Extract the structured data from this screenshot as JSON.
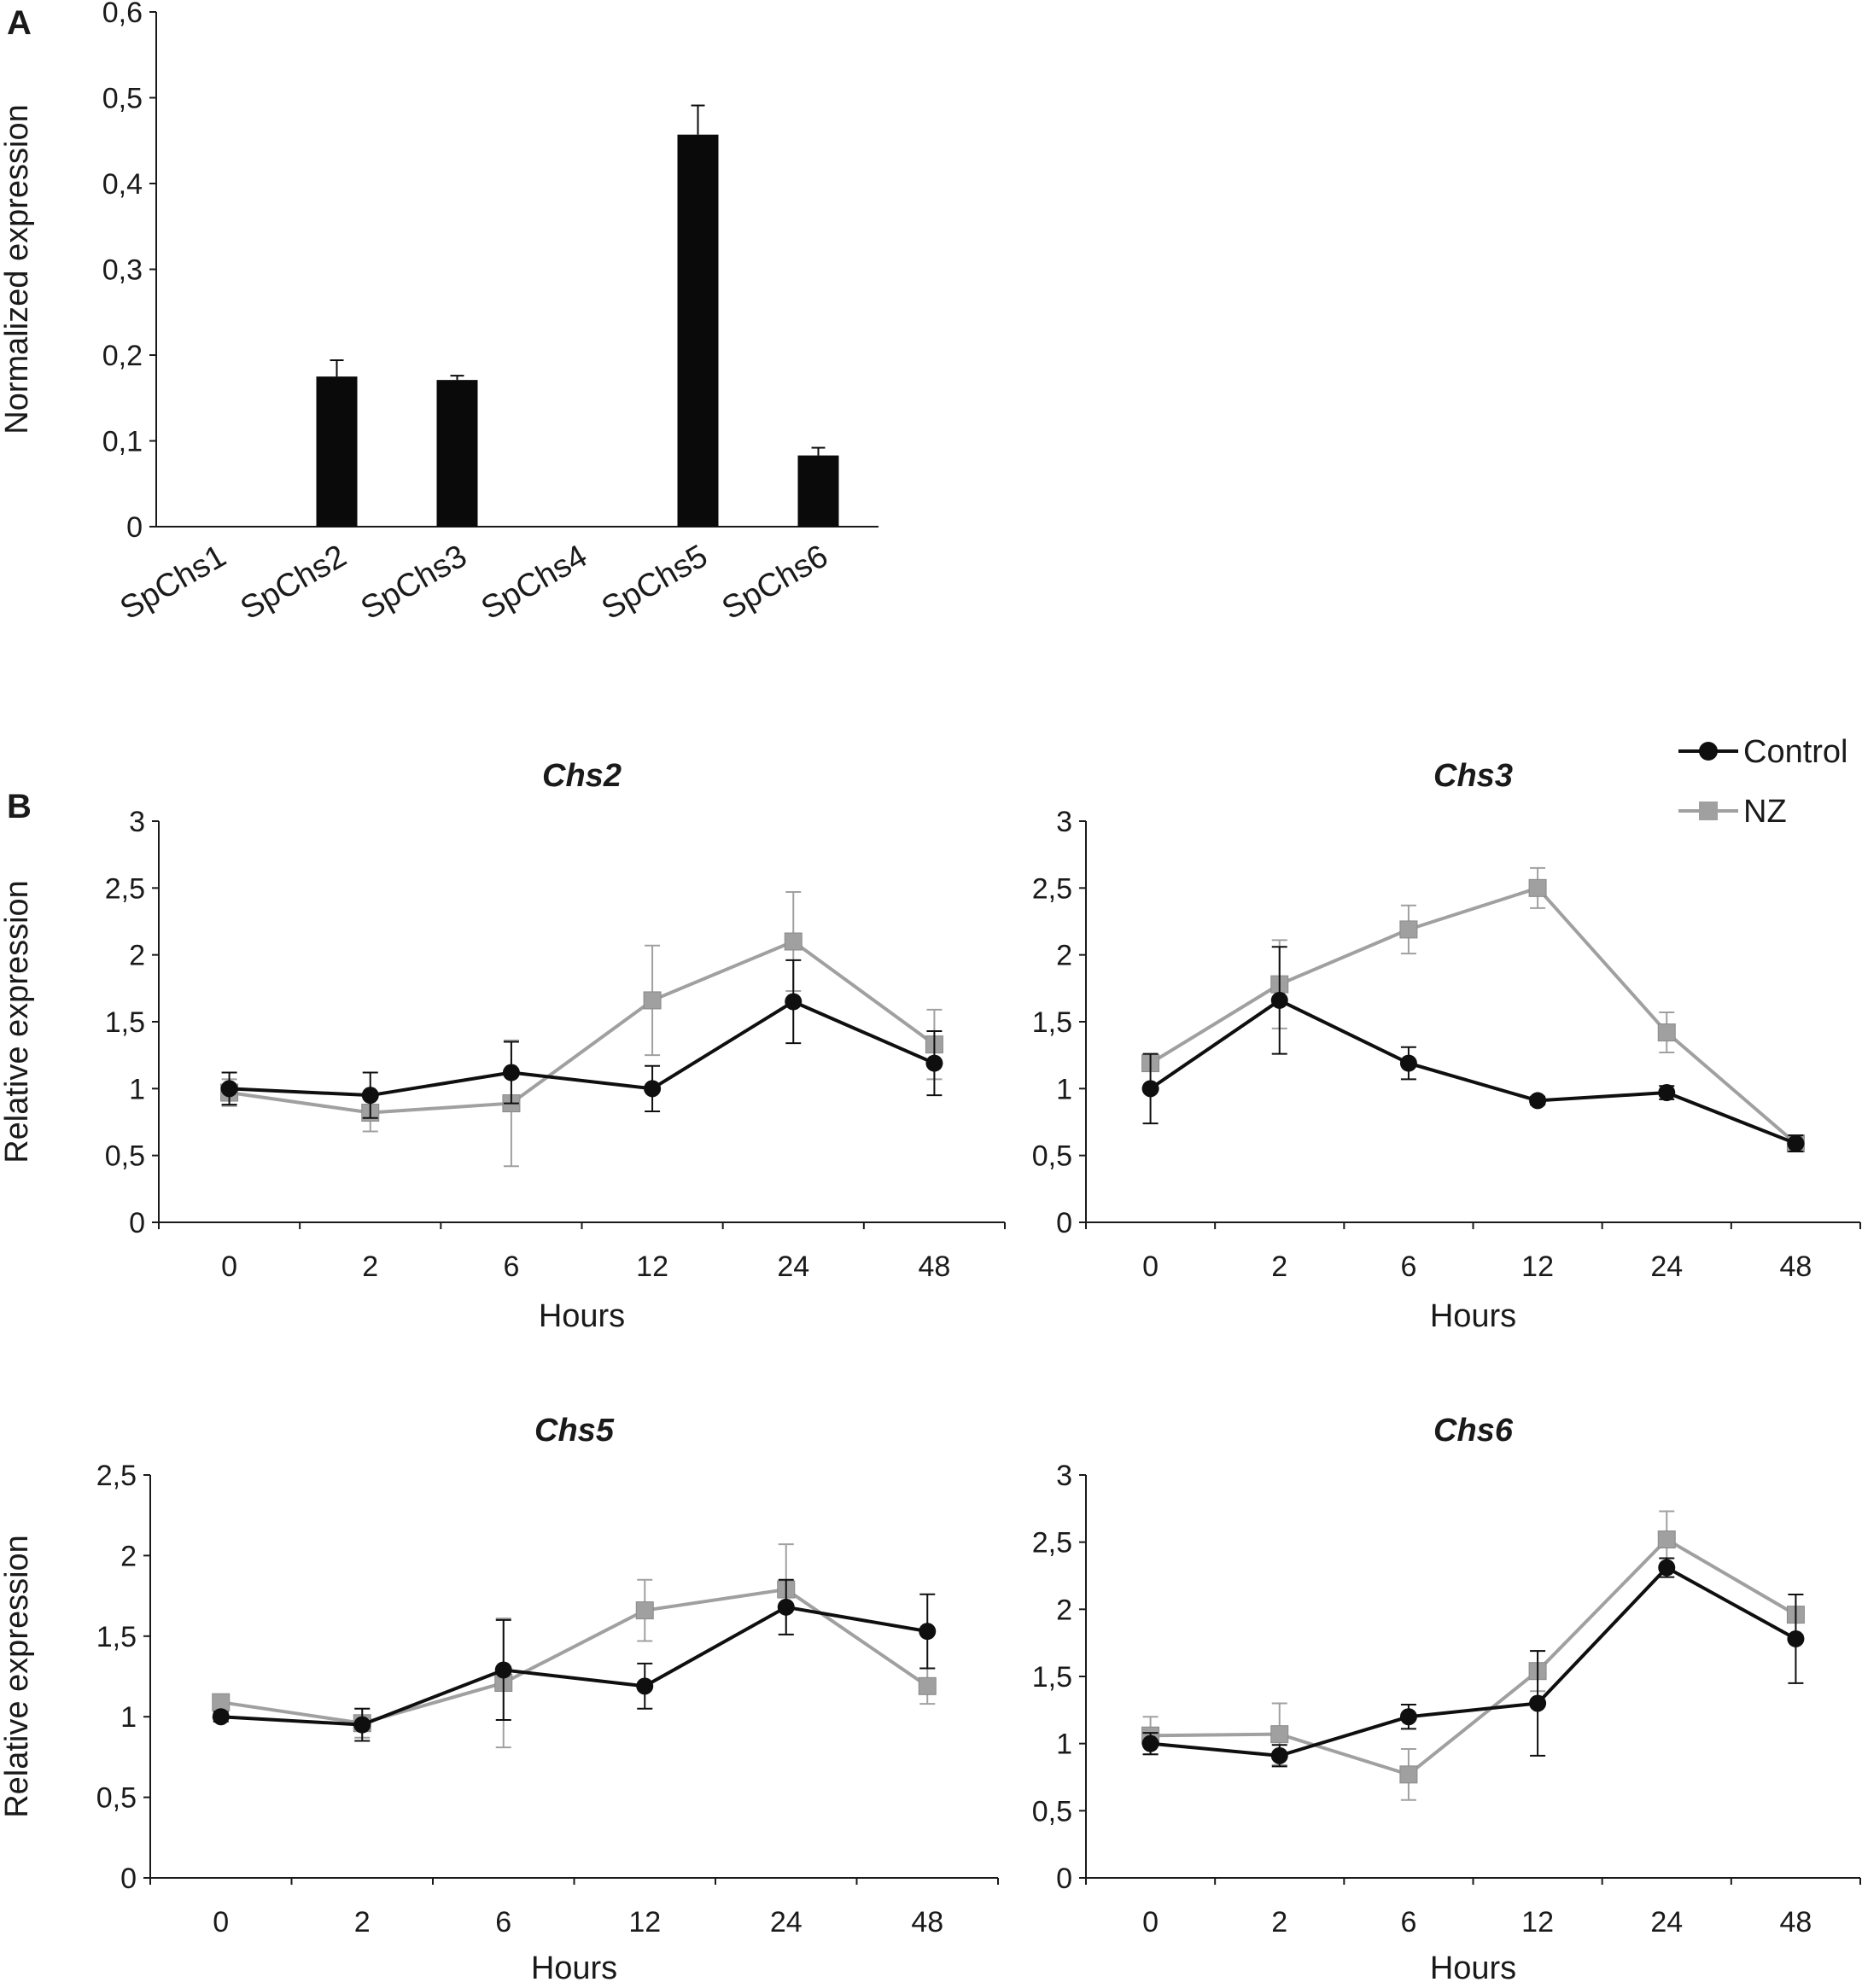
{
  "panel_labels": {
    "a": "A",
    "b": "B"
  },
  "colors": {
    "bar": "#0a0a0a",
    "control": "#0f0f0f",
    "nz": "#a0a0a0",
    "axis": "#1a1a1a"
  },
  "legend": {
    "items": [
      {
        "name": "Control",
        "marker": "circle",
        "color": "#0f0f0f"
      },
      {
        "name": "NZ",
        "marker": "square",
        "color": "#a0a0a0"
      }
    ]
  },
  "chart_data": [
    {
      "id": "A",
      "type": "bar",
      "title": "",
      "xlabel": "",
      "ylabel": "Normalized expression",
      "ylim": [
        0,
        0.6
      ],
      "yticks": [
        0,
        0.1,
        0.2,
        0.3,
        0.4,
        0.5,
        0.6
      ],
      "ytick_labels": [
        "0",
        "0,1",
        "0,2",
        "0,3",
        "0,4",
        "0,5",
        "0,6"
      ],
      "categories": [
        "SpChs1",
        "SpChs2",
        "SpChs3",
        "SpChs4",
        "SpChs5",
        "SpChs6"
      ],
      "values": [
        0,
        0.175,
        0.171,
        0,
        0.457,
        0.083
      ],
      "errors": [
        0,
        0.019,
        0.005,
        0,
        0.034,
        0.009
      ]
    },
    {
      "id": "Chs2",
      "type": "line",
      "title": "Chs2",
      "xlabel": "Hours",
      "ylabel": "Relative expression",
      "categories": [
        "0",
        "2",
        "6",
        "12",
        "24",
        "48"
      ],
      "ylim": [
        0,
        3
      ],
      "yticks": [
        0,
        0.5,
        1,
        1.5,
        2,
        2.5,
        3
      ],
      "ytick_labels": [
        "0",
        "0,5",
        "1",
        "1,5",
        "2",
        "2,5",
        "3"
      ],
      "series": [
        {
          "name": "Control",
          "values": [
            1.0,
            0.95,
            1.12,
            1.0,
            1.65,
            1.19
          ],
          "errors": [
            0.12,
            0.17,
            0.23,
            0.17,
            0.31,
            0.24
          ]
        },
        {
          "name": "NZ",
          "values": [
            0.97,
            0.82,
            0.89,
            1.66,
            2.1,
            1.33
          ],
          "errors": [
            0.1,
            0.14,
            0.47,
            0.41,
            0.37,
            0.26
          ]
        }
      ]
    },
    {
      "id": "Chs3",
      "type": "line",
      "title": "Chs3",
      "xlabel": "Hours",
      "ylabel": "",
      "categories": [
        "0",
        "2",
        "6",
        "12",
        "24",
        "48"
      ],
      "ylim": [
        0,
        3
      ],
      "yticks": [
        0,
        0.5,
        1,
        1.5,
        2,
        2.5,
        3
      ],
      "ytick_labels": [
        "0",
        "0,5",
        "1",
        "1,5",
        "2",
        "2,5",
        "3"
      ],
      "series": [
        {
          "name": "Control",
          "values": [
            1.0,
            1.66,
            1.19,
            0.91,
            0.97,
            0.59
          ],
          "errors": [
            0.26,
            0.4,
            0.12,
            0.03,
            0.05,
            0.06
          ]
        },
        {
          "name": "NZ",
          "values": [
            1.19,
            1.78,
            2.19,
            2.5,
            1.42,
            0.59
          ],
          "errors": [
            0.04,
            0.33,
            0.18,
            0.15,
            0.15,
            0.04
          ]
        }
      ]
    },
    {
      "id": "Chs5",
      "type": "line",
      "title": "Chs5",
      "xlabel": "Hours",
      "ylabel": "Relative expression",
      "categories": [
        "0",
        "2",
        "6",
        "12",
        "24",
        "48"
      ],
      "ylim": [
        0,
        2.5
      ],
      "yticks": [
        0,
        0.5,
        1,
        1.5,
        2,
        2.5
      ],
      "ytick_labels": [
        "0",
        "0,5",
        "1",
        "1,5",
        "2",
        "2,5"
      ],
      "series": [
        {
          "name": "Control",
          "values": [
            1.0,
            0.95,
            1.29,
            1.19,
            1.68,
            1.53
          ],
          "errors": [
            0.03,
            0.1,
            0.31,
            0.14,
            0.17,
            0.23
          ]
        },
        {
          "name": "NZ",
          "values": [
            1.09,
            0.96,
            1.21,
            1.66,
            1.79,
            1.19
          ],
          "errors": [
            0.03,
            0.09,
            0.4,
            0.19,
            0.28,
            0.11
          ]
        }
      ]
    },
    {
      "id": "Chs6",
      "type": "line",
      "title": "Chs6",
      "xlabel": "Hours",
      "ylabel": "",
      "categories": [
        "0",
        "2",
        "6",
        "12",
        "24",
        "48"
      ],
      "ylim": [
        0,
        3
      ],
      "yticks": [
        0,
        0.5,
        1,
        1.5,
        2,
        2.5,
        3
      ],
      "ytick_labels": [
        "0",
        "0,5",
        "1",
        "1,5",
        "2",
        "2,5",
        "3"
      ],
      "series": [
        {
          "name": "Control",
          "values": [
            1.0,
            0.91,
            1.2,
            1.3,
            2.31,
            1.78
          ],
          "errors": [
            0.08,
            0.08,
            0.09,
            0.39,
            0.07,
            0.33
          ]
        },
        {
          "name": "NZ",
          "values": [
            1.06,
            1.07,
            0.77,
            1.54,
            2.52,
            1.96
          ],
          "errors": [
            0.14,
            0.23,
            0.19,
            0.15,
            0.21,
            0.15
          ]
        }
      ]
    }
  ]
}
